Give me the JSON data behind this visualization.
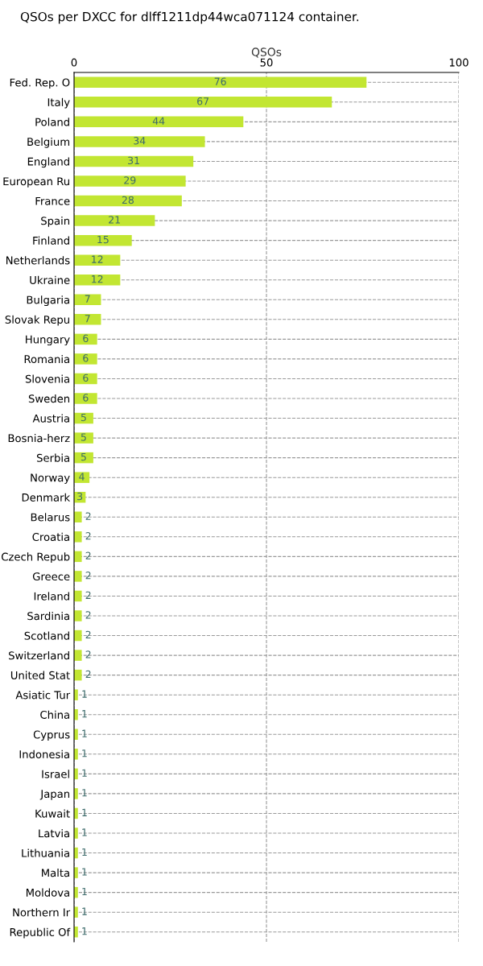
{
  "chart_data": {
    "type": "bar",
    "orientation": "horizontal",
    "title": "QSOs per DXCC for dlff1211dp44wca071124 container.",
    "xlabel": "QSOs",
    "categories": [
      "Fed. Rep. O",
      "Italy",
      "Poland",
      "Belgium",
      "England",
      "European Ru",
      "France",
      "Spain",
      "Finland",
      "Netherlands",
      "Ukraine",
      "Bulgaria",
      "Slovak Repu",
      "Hungary",
      "Romania",
      "Slovenia",
      "Sweden",
      "Austria",
      "Bosnia-herz",
      "Serbia",
      "Norway",
      "Denmark",
      "Belarus",
      "Croatia",
      "Czech Repub",
      "Greece",
      "Ireland",
      "Sardinia",
      "Scotland",
      "Switzerland",
      "United Stat",
      "Asiatic Tur",
      "China",
      "Cyprus",
      "Indonesia",
      "Israel",
      "Japan",
      "Kuwait",
      "Latvia",
      "Lithuania",
      "Malta",
      "Moldova",
      "Northern Ir",
      "Republic Of"
    ],
    "values": [
      76,
      67,
      44,
      34,
      31,
      29,
      28,
      21,
      15,
      12,
      12,
      7,
      7,
      6,
      6,
      6,
      6,
      5,
      5,
      5,
      4,
      3,
      2,
      2,
      2,
      2,
      2,
      2,
      2,
      2,
      2,
      1,
      1,
      1,
      1,
      1,
      1,
      1,
      1,
      1,
      1,
      1,
      1,
      1
    ],
    "color": "#c2e632",
    "xlim": [
      0,
      100
    ],
    "xticks": [
      0,
      50,
      100
    ],
    "grid": true,
    "data_labels": true
  }
}
